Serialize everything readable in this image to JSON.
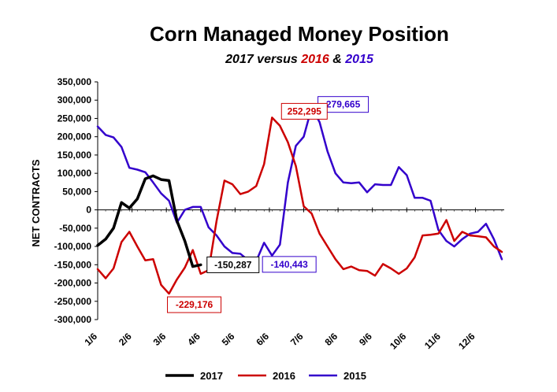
{
  "chart_data": {
    "type": "line",
    "title": "Corn Managed Money Position",
    "subtitle": {
      "part1": "2017 versus ",
      "part2": "2016",
      "part3": " & ",
      "part4": "2015"
    },
    "ylabel": "NET CONTRACTS",
    "ylim": [
      -300000,
      350000
    ],
    "yticks": [
      350000,
      300000,
      250000,
      200000,
      150000,
      100000,
      50000,
      0,
      -50000,
      -100000,
      -150000,
      -200000,
      -250000,
      -300000
    ],
    "ytick_labels": [
      "350,000",
      "300,000",
      "250,000",
      "200,000",
      "150,000",
      "100,000",
      "50,000",
      "0",
      "-50,000",
      "-100,000",
      "-150,000",
      "-200,000",
      "-250,000",
      "-300,000"
    ],
    "xticks": [
      "1/6",
      "2/6",
      "3/6",
      "4/6",
      "5/6",
      "6/6",
      "7/6",
      "8/6",
      "9/6",
      "10/6",
      "11/6",
      "12/6"
    ],
    "x_unit": "week of year (1 = Jan 6)",
    "grid": false,
    "legend": "bottom",
    "series": [
      {
        "name": "2017",
        "color": "#000000",
        "stroke_width": 3.5,
        "points": [
          [
            1,
            -97000
          ],
          [
            2,
            -80000
          ],
          [
            3,
            -50000
          ],
          [
            4,
            20000
          ],
          [
            5,
            5000
          ],
          [
            6,
            30000
          ],
          [
            7,
            85000
          ],
          [
            8,
            93000
          ],
          [
            9,
            83000
          ],
          [
            10,
            80000
          ],
          [
            11,
            -30000
          ],
          [
            12,
            -85000
          ],
          [
            13,
            -155000
          ],
          [
            14,
            -150287
          ]
        ]
      },
      {
        "name": "2016",
        "color": "#cc0000",
        "stroke_width": 2.5,
        "points": [
          [
            1,
            -162000
          ],
          [
            2,
            -187000
          ],
          [
            3,
            -160000
          ],
          [
            4,
            -88000
          ],
          [
            5,
            -60000
          ],
          [
            6,
            -100000
          ],
          [
            7,
            -138000
          ],
          [
            8,
            -135000
          ],
          [
            9,
            -205000
          ],
          [
            10,
            -229176
          ],
          [
            11,
            -190000
          ],
          [
            12,
            -158000
          ],
          [
            13,
            -110000
          ],
          [
            14,
            -175000
          ],
          [
            15,
            -165000
          ],
          [
            16,
            -30000
          ],
          [
            17,
            80000
          ],
          [
            18,
            70000
          ],
          [
            19,
            43000
          ],
          [
            20,
            50000
          ],
          [
            21,
            65000
          ],
          [
            22,
            125000
          ],
          [
            23,
            252295
          ],
          [
            24,
            230000
          ],
          [
            25,
            185000
          ],
          [
            26,
            120000
          ],
          [
            27,
            10000
          ],
          [
            28,
            -10000
          ],
          [
            29,
            -65000
          ],
          [
            30,
            -100000
          ],
          [
            31,
            -135000
          ],
          [
            32,
            -162000
          ],
          [
            33,
            -155000
          ],
          [
            34,
            -165000
          ],
          [
            35,
            -167000
          ],
          [
            36,
            -180000
          ],
          [
            37,
            -148000
          ],
          [
            38,
            -160000
          ],
          [
            39,
            -175000
          ],
          [
            40,
            -160000
          ],
          [
            41,
            -130000
          ],
          [
            42,
            -70000
          ],
          [
            43,
            -68000
          ],
          [
            44,
            -65000
          ],
          [
            45,
            -28000
          ],
          [
            46,
            -85000
          ],
          [
            47,
            -60000
          ],
          [
            48,
            -70000
          ],
          [
            49,
            -72000
          ],
          [
            50,
            -75000
          ],
          [
            51,
            -100000
          ],
          [
            52,
            -115000
          ]
        ]
      },
      {
        "name": "2015",
        "color": "#3300cc",
        "stroke_width": 2.5,
        "points": [
          [
            1,
            228000
          ],
          [
            2,
            205000
          ],
          [
            3,
            198000
          ],
          [
            4,
            172000
          ],
          [
            5,
            115000
          ],
          [
            6,
            110000
          ],
          [
            7,
            103000
          ],
          [
            8,
            75000
          ],
          [
            9,
            45000
          ],
          [
            10,
            25000
          ],
          [
            11,
            -35000
          ],
          [
            12,
            0
          ],
          [
            13,
            8000
          ],
          [
            14,
            8000
          ],
          [
            15,
            -48000
          ],
          [
            16,
            -70000
          ],
          [
            17,
            -100000
          ],
          [
            18,
            -118000
          ],
          [
            19,
            -120000
          ],
          [
            20,
            -138000
          ],
          [
            21,
            -140443
          ],
          [
            22,
            -90000
          ],
          [
            23,
            -125000
          ],
          [
            24,
            -95000
          ],
          [
            25,
            75000
          ],
          [
            26,
            175000
          ],
          [
            27,
            200000
          ],
          [
            28,
            279665
          ],
          [
            29,
            240000
          ],
          [
            30,
            160000
          ],
          [
            31,
            100000
          ],
          [
            32,
            75000
          ],
          [
            33,
            73000
          ],
          [
            34,
            75000
          ],
          [
            35,
            48000
          ],
          [
            36,
            70000
          ],
          [
            37,
            68000
          ],
          [
            38,
            68000
          ],
          [
            39,
            117000
          ],
          [
            40,
            95000
          ],
          [
            41,
            33000
          ],
          [
            42,
            33000
          ],
          [
            43,
            25000
          ],
          [
            44,
            -55000
          ],
          [
            45,
            -85000
          ],
          [
            46,
            -100000
          ],
          [
            47,
            -80000
          ],
          [
            48,
            -65000
          ],
          [
            49,
            -60000
          ],
          [
            50,
            -38000
          ],
          [
            51,
            -80000
          ],
          [
            52,
            -135000
          ]
        ]
      }
    ],
    "annotations": [
      {
        "text": "279,665",
        "series": "2015",
        "color": "#3300cc"
      },
      {
        "text": "252,295",
        "series": "2016",
        "color": "#cc0000"
      },
      {
        "text": "-150,287",
        "series": "2017",
        "color": "#000000"
      },
      {
        "text": "-140,443",
        "series": "2015",
        "color": "#3300cc"
      },
      {
        "text": "-229,176",
        "series": "2016",
        "color": "#cc0000"
      }
    ]
  }
}
